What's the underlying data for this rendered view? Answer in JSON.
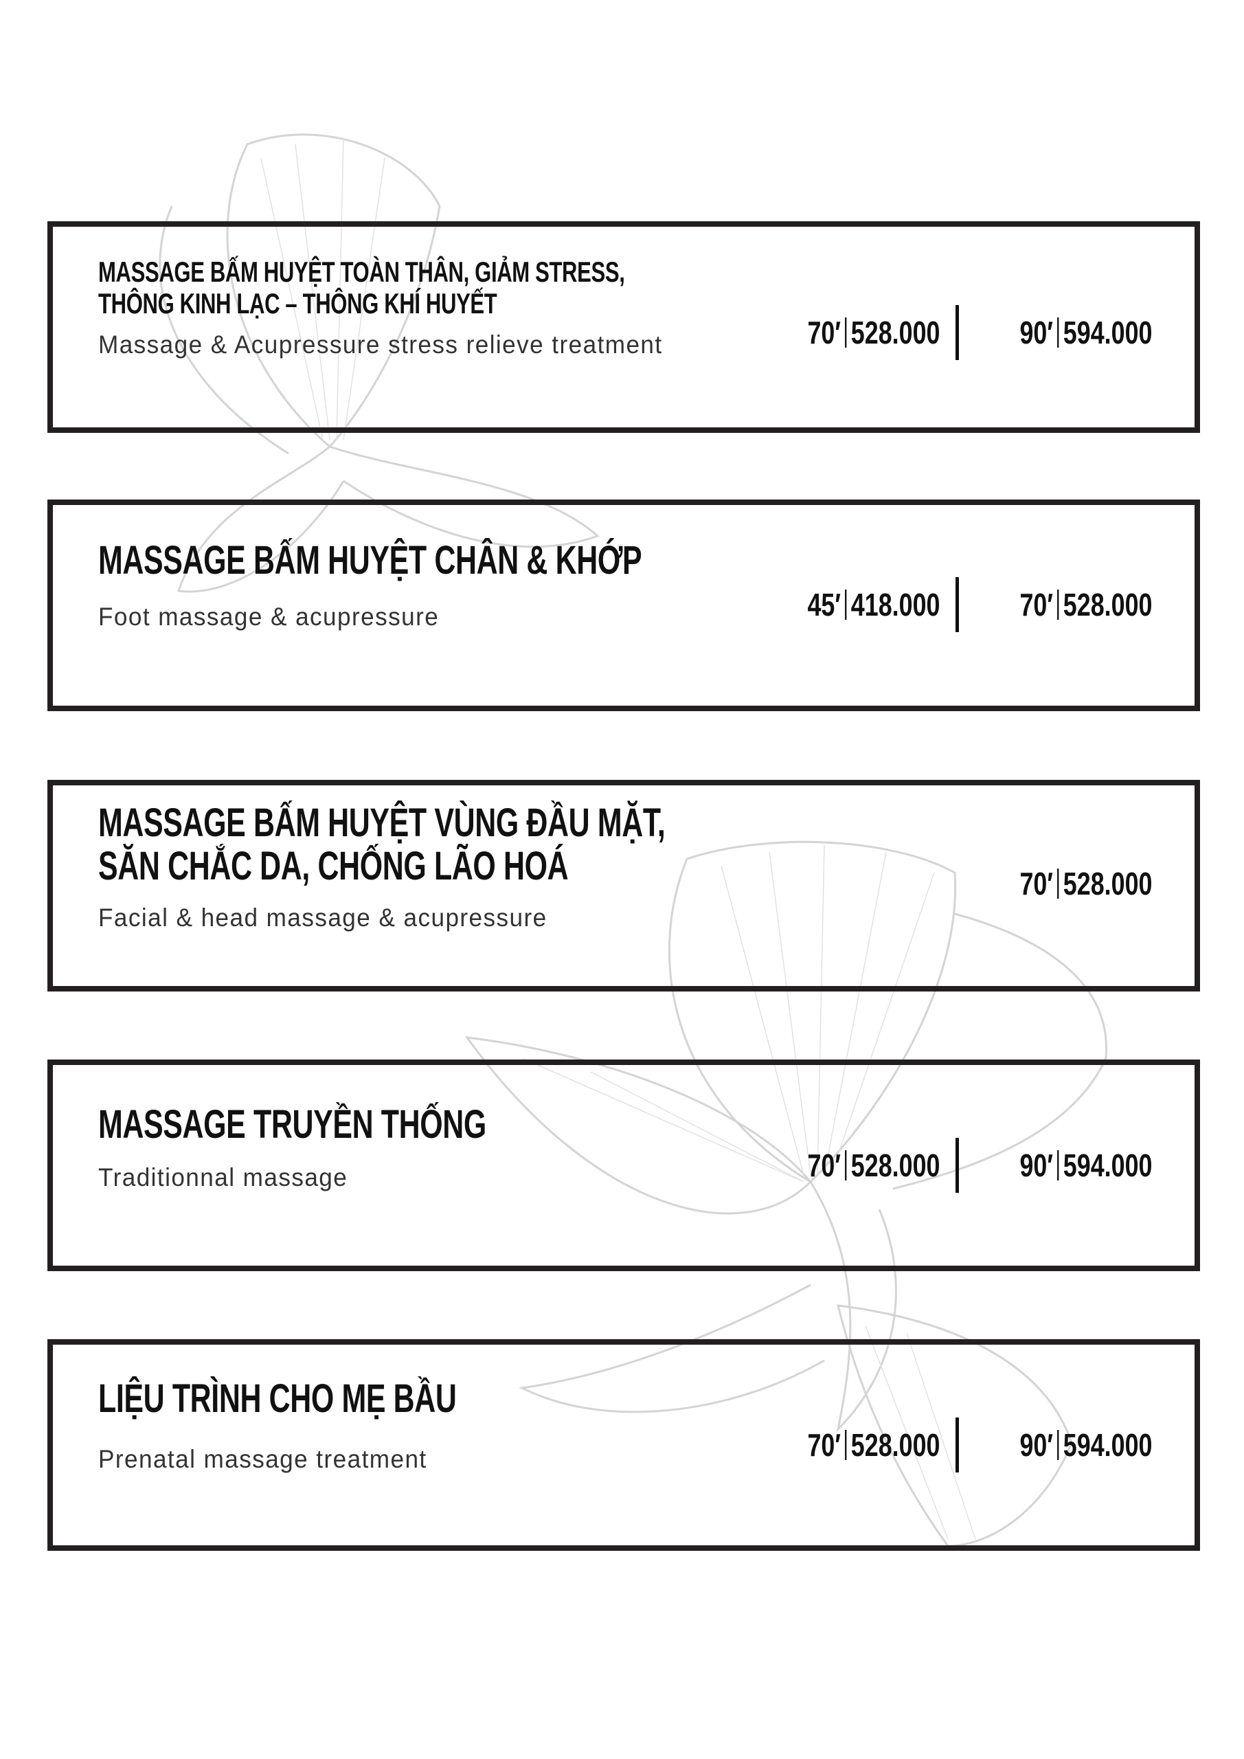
{
  "colors": {
    "border": "#231f20",
    "text": "#111111",
    "watermark": "#d0d0d0"
  },
  "watermark": {
    "icon": "orchid-flower-line-art"
  },
  "services": [
    {
      "title_lines": [
        "MASSAGE BẤM HUYỆT TOÀN THÂN, GIẢM STRESS,",
        "THÔNG KINH LẠC – THÔNG KHÍ HUYẾT"
      ],
      "subtitle": "Massage & Acupressure stress relieve treatment",
      "prices": [
        {
          "duration": "70′",
          "price": "528.000"
        },
        {
          "duration": "90′",
          "price": "594.000"
        }
      ]
    },
    {
      "title_lines": [
        "MASSAGE BẤM HUYỆT CHÂN & KHỚP"
      ],
      "subtitle": "Foot massage & acupressure",
      "prices": [
        {
          "duration": "45′",
          "price": "418.000"
        },
        {
          "duration": "70′",
          "price": "528.000"
        }
      ]
    },
    {
      "title_lines": [
        "MASSAGE BẤM HUYỆT VÙNG ĐẦU MẶT,",
        "SĂN CHẮC DA, CHỐNG LÃO HOÁ"
      ],
      "subtitle": "Facial & head massage & acupressure",
      "prices": [
        {
          "duration": "70′",
          "price": "528.000"
        }
      ]
    },
    {
      "title_lines": [
        "MASSAGE TRUYỀN THỐNG"
      ],
      "subtitle": "Traditionnal massage",
      "prices": [
        {
          "duration": "70′",
          "price": "528.000"
        },
        {
          "duration": "90′",
          "price": "594.000"
        }
      ]
    },
    {
      "title_lines": [
        "LIỆU TRÌNH CHO MẸ BẦU"
      ],
      "subtitle": "Prenatal massage treatment",
      "prices": [
        {
          "duration": "70′",
          "price": "528.000"
        },
        {
          "duration": "90′",
          "price": "594.000"
        }
      ]
    }
  ]
}
